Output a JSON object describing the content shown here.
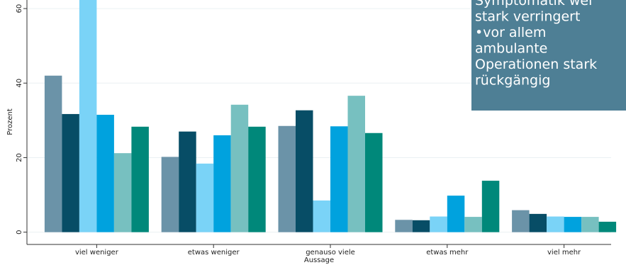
{
  "chart_data": {
    "type": "bar",
    "x_label": "Aussage",
    "y_label": "Prozent",
    "categories": [
      "viel weniger",
      "etwas weniger",
      "genauso viele",
      "etwas mehr",
      "viel mehr"
    ],
    "series": [
      {
        "color": "#6b93a8",
        "values": [
          42,
          20.2,
          28.5,
          3.3,
          5.9
        ]
      },
      {
        "color": "#074d66",
        "values": [
          31.7,
          27,
          32.7,
          3.2,
          4.9
        ]
      },
      {
        "color": "#7ad3f7",
        "values": [
          65,
          18.4,
          8.5,
          4.2,
          4.2
        ]
      },
      {
        "color": "#00a2de",
        "values": [
          31.5,
          26,
          28.4,
          9.8,
          4.1
        ]
      },
      {
        "color": "#77c0c0",
        "values": [
          21.2,
          34.2,
          36.6,
          4.1,
          4.1
        ]
      },
      {
        "color": "#00887a",
        "values": [
          28.3,
          28.3,
          26.6,
          13.8,
          2.8
        ]
      }
    ],
    "ylim": [
      -3.3,
      62.3
    ],
    "yticks": [
      0,
      20,
      40,
      60
    ],
    "grid": true,
    "annotation": [
      "Symptomatik wei",
      "stark verringert",
      "•vor allem",
      "ambulante",
      "Operationen stark",
      "rückgängig"
    ],
    "annotation_color": "#4e7f95"
  }
}
